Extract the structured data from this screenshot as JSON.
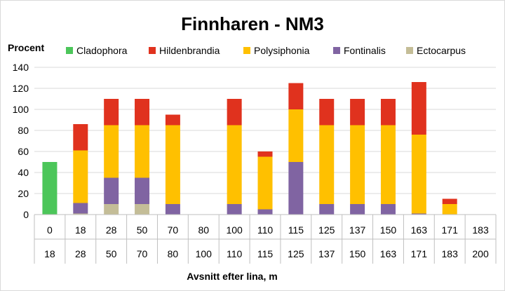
{
  "chart_data": {
    "type": "bar",
    "stacked": true,
    "title": "Finnharen - NM3",
    "ylabel": "Procent",
    "xlabel": "Avsnitt efter lina, m",
    "ylim": [
      0,
      140
    ],
    "yticks": [
      0,
      20,
      40,
      60,
      80,
      100,
      120,
      140
    ],
    "grid": true,
    "legend_position": "top",
    "categories_from": [
      "0",
      "18",
      "28",
      "50",
      "70",
      "80",
      "100",
      "110",
      "115",
      "125",
      "137",
      "150",
      "163",
      "171",
      "183"
    ],
    "categories_to": [
      "18",
      "28",
      "50",
      "70",
      "80",
      "100",
      "110",
      "115",
      "125",
      "137",
      "150",
      "163",
      "171",
      "183",
      "200"
    ],
    "series": [
      {
        "name": "Cladophora",
        "color": "#4cc65a",
        "values": [
          50,
          0,
          0,
          0,
          0,
          0,
          0,
          0,
          0,
          0,
          0,
          0,
          0,
          0,
          0
        ]
      },
      {
        "name": "Hildenbrandia",
        "color": "#e0321e",
        "values": [
          0,
          25,
          25,
          25,
          10,
          0,
          25,
          5,
          25,
          25,
          25,
          25,
          50,
          5,
          0
        ]
      },
      {
        "name": "Polysiphonia",
        "color": "#ffc000",
        "values": [
          0,
          50,
          50,
          50,
          75,
          0,
          75,
          50,
          50,
          75,
          75,
          75,
          75,
          10,
          0
        ]
      },
      {
        "name": "Fontinalis",
        "color": "#8064a2",
        "values": [
          0,
          10,
          25,
          25,
          10,
          0,
          10,
          5,
          50,
          10,
          10,
          10,
          1,
          0,
          0
        ]
      },
      {
        "name": "Ectocarpus",
        "color": "#c4bd97",
        "values": [
          0,
          1,
          10,
          10,
          0,
          0,
          0,
          0,
          0,
          0,
          0,
          0,
          0,
          0,
          0
        ]
      }
    ]
  }
}
